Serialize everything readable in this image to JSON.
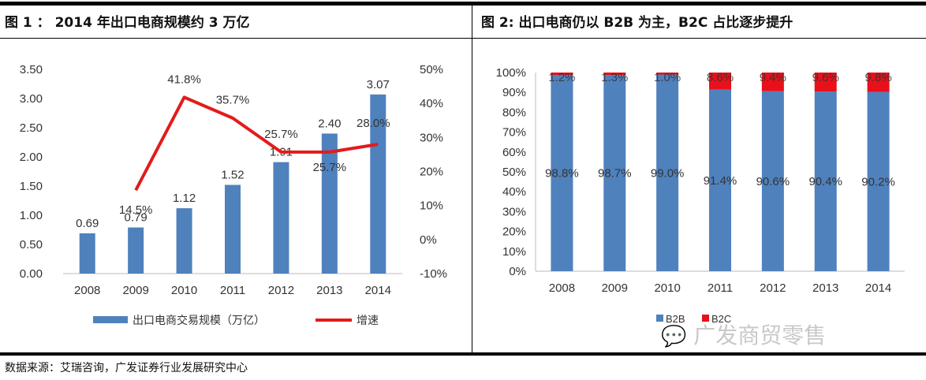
{
  "left_title": "图 1 ： 2014 年出口电商规模约 3 万亿",
  "right_title": "图 2:  出口电商仍以 B2B 为主，B2C 占比逐步提升",
  "source": "数据来源：艾瑞咨询，广发证券行业发展研究中心",
  "watermark": "广发商贸零售",
  "colors": {
    "bar": "#4f81bd",
    "line": "#e31b1b",
    "b2c": "#e8101a"
  },
  "chart_data": [
    {
      "type": "bar",
      "categories": [
        "2008",
        "2009",
        "2010",
        "2011",
        "2012",
        "2013",
        "2014"
      ],
      "series": [
        {
          "name": "出口电商交易规模（万亿）",
          "type": "bar",
          "axis": "left",
          "values": [
            0.69,
            0.79,
            1.12,
            1.52,
            1.91,
            2.4,
            3.07
          ],
          "labels": [
            "0.69",
            "0.79",
            "1.12",
            "1.52",
            "1.91",
            "2.40",
            "3.07"
          ]
        },
        {
          "name": "增速",
          "type": "line",
          "axis": "right",
          "values": [
            null,
            14.5,
            41.8,
            35.7,
            25.7,
            25.7,
            28.0
          ],
          "labels": [
            "",
            "14.5%",
            "41.8%",
            "35.7%",
            "25.7%",
            "25.7%",
            "28.0%"
          ]
        }
      ],
      "yleft": {
        "lim": [
          0,
          3.5
        ],
        "ticks": [
          "0.00",
          "0.50",
          "1.00",
          "1.50",
          "2.00",
          "2.50",
          "3.00",
          "3.50"
        ]
      },
      "yright": {
        "lim": [
          -10,
          50
        ],
        "ticks": [
          "-10%",
          "0%",
          "10%",
          "20%",
          "30%",
          "40%",
          "50%"
        ]
      },
      "legend_position": "bottom"
    },
    {
      "type": "bar",
      "stacked": true,
      "categories": [
        "2008",
        "2009",
        "2010",
        "2011",
        "2012",
        "2013",
        "2014"
      ],
      "series": [
        {
          "name": "B2B",
          "values": [
            98.8,
            98.7,
            99.0,
            91.4,
            90.6,
            90.4,
            90.2
          ],
          "labels": [
            "98.8%",
            "98.7%",
            "99.0%",
            "91.4%",
            "90.6%",
            "90.4%",
            "90.2%"
          ]
        },
        {
          "name": "B2C",
          "values": [
            1.2,
            1.3,
            1.0,
            8.6,
            9.4,
            9.6,
            9.8
          ],
          "labels": [
            "1.2%",
            "1.3%",
            "1.0%",
            "8.6%",
            "9.4%",
            "9.6%",
            "9.8%"
          ]
        }
      ],
      "ylim": [
        0,
        100
      ],
      "yticks": [
        "0%",
        "10%",
        "20%",
        "30%",
        "40%",
        "50%",
        "60%",
        "70%",
        "80%",
        "90%",
        "100%"
      ],
      "legend_position": "bottom-right"
    }
  ]
}
